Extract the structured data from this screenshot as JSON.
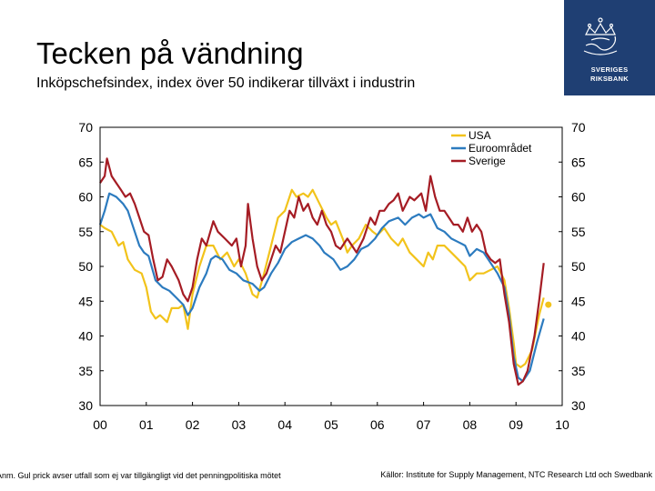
{
  "header": {
    "title": "Tecken på vändning",
    "subtitle": "Inköpschefsindex, index över 50 indikerar tillväxt i industrin"
  },
  "logo": {
    "line1": "SVERIGES",
    "line2": "RIKSBANK"
  },
  "footer": {
    "note": "Anm. Gul prick avser utfall som ej var tillgängligt vid det penningpolitiska mötet",
    "source": "Källor: Institute for Supply Management, NTC Research Ltd och Swedbank"
  },
  "colors": {
    "usa": "#f2c31b",
    "euro": "#2c7bbf",
    "sverige": "#a51c24",
    "logo_bg": "#1f3f73"
  },
  "chart_data": {
    "type": "line",
    "title": "Inköpschefsindex",
    "xlabel": "",
    "ylabel": "",
    "x_range": [
      2000,
      2010
    ],
    "ylim": [
      30,
      70
    ],
    "y_ticks": [
      70,
      65,
      60,
      55,
      50,
      45,
      40,
      35,
      30
    ],
    "y_tick_labels_left": [
      "70",
      "65",
      "60",
      "55",
      "50",
      "45",
      "40",
      "35",
      "30"
    ],
    "y_tick_labels_right": [
      "70",
      "65",
      "60",
      "55",
      "50",
      "45",
      "40",
      "35",
      "30"
    ],
    "x_ticks": [
      2000,
      2001,
      2002,
      2003,
      2004,
      2005,
      2006,
      2007,
      2008,
      2009,
      2010
    ],
    "x_tick_labels": [
      "00",
      "01",
      "02",
      "03",
      "04",
      "05",
      "06",
      "07",
      "08",
      "09",
      "10"
    ],
    "legend": [
      "USA",
      "Euroområdet",
      "Sverige"
    ],
    "legend_position": "top-right",
    "series": [
      {
        "name": "USA",
        "points": [
          [
            2000.0,
            56
          ],
          [
            2000.1,
            55.5
          ],
          [
            2000.25,
            55
          ],
          [
            2000.4,
            53
          ],
          [
            2000.5,
            53.5
          ],
          [
            2000.6,
            51
          ],
          [
            2000.75,
            49.5
          ],
          [
            2000.9,
            49
          ],
          [
            2001.0,
            47
          ],
          [
            2001.1,
            43.5
          ],
          [
            2001.2,
            42.5
          ],
          [
            2001.3,
            43
          ],
          [
            2001.45,
            42
          ],
          [
            2001.55,
            44
          ],
          [
            2001.7,
            44
          ],
          [
            2001.8,
            44.5
          ],
          [
            2001.9,
            41
          ],
          [
            2002.0,
            46
          ],
          [
            2002.15,
            50
          ],
          [
            2002.3,
            53
          ],
          [
            2002.45,
            53
          ],
          [
            2002.6,
            51
          ],
          [
            2002.75,
            52
          ],
          [
            2002.9,
            50
          ],
          [
            2003.0,
            51
          ],
          [
            2003.15,
            49
          ],
          [
            2003.3,
            46
          ],
          [
            2003.4,
            45.5
          ],
          [
            2003.55,
            49
          ],
          [
            2003.7,
            53
          ],
          [
            2003.85,
            57
          ],
          [
            2004.0,
            58
          ],
          [
            2004.15,
            61
          ],
          [
            2004.25,
            60
          ],
          [
            2004.4,
            60.5
          ],
          [
            2004.5,
            60
          ],
          [
            2004.6,
            61
          ],
          [
            2004.75,
            59
          ],
          [
            2004.9,
            57
          ],
          [
            2005.0,
            56
          ],
          [
            2005.1,
            56.5
          ],
          [
            2005.25,
            54
          ],
          [
            2005.35,
            52
          ],
          [
            2005.45,
            53
          ],
          [
            2005.6,
            54
          ],
          [
            2005.75,
            56
          ],
          [
            2005.9,
            55
          ],
          [
            2006.0,
            54.5
          ],
          [
            2006.15,
            55.5
          ],
          [
            2006.3,
            54
          ],
          [
            2006.45,
            53
          ],
          [
            2006.55,
            54
          ],
          [
            2006.7,
            52
          ],
          [
            2006.85,
            51
          ],
          [
            2007.0,
            50
          ],
          [
            2007.1,
            52
          ],
          [
            2007.2,
            51
          ],
          [
            2007.3,
            53
          ],
          [
            2007.45,
            53
          ],
          [
            2007.6,
            52
          ],
          [
            2007.75,
            51
          ],
          [
            2007.9,
            50
          ],
          [
            2008.0,
            48
          ],
          [
            2008.15,
            49
          ],
          [
            2008.3,
            49
          ],
          [
            2008.45,
            49.5
          ],
          [
            2008.6,
            50
          ],
          [
            2008.75,
            48
          ],
          [
            2008.85,
            44
          ],
          [
            2008.95,
            39
          ],
          [
            2009.0,
            36
          ],
          [
            2009.1,
            35.5
          ],
          [
            2009.2,
            36
          ],
          [
            2009.35,
            38
          ],
          [
            2009.5,
            43
          ],
          [
            2009.6,
            45.5
          ]
        ]
      },
      {
        "name": "Euroområdet",
        "points": [
          [
            2000.0,
            56
          ],
          [
            2000.1,
            58
          ],
          [
            2000.2,
            60.5
          ],
          [
            2000.35,
            60
          ],
          [
            2000.5,
            59
          ],
          [
            2000.6,
            58
          ],
          [
            2000.75,
            55
          ],
          [
            2000.85,
            53
          ],
          [
            2000.95,
            52
          ],
          [
            2001.05,
            51.5
          ],
          [
            2001.2,
            48
          ],
          [
            2001.35,
            47
          ],
          [
            2001.5,
            46.5
          ],
          [
            2001.65,
            45.5
          ],
          [
            2001.8,
            44.5
          ],
          [
            2001.9,
            43
          ],
          [
            2002.0,
            44
          ],
          [
            2002.15,
            47
          ],
          [
            2002.3,
            49
          ],
          [
            2002.4,
            51
          ],
          [
            2002.5,
            51.5
          ],
          [
            2002.65,
            51
          ],
          [
            2002.8,
            49.5
          ],
          [
            2002.95,
            49
          ],
          [
            2003.1,
            48
          ],
          [
            2003.3,
            47.5
          ],
          [
            2003.45,
            46.5
          ],
          [
            2003.55,
            47
          ],
          [
            2003.7,
            49
          ],
          [
            2003.85,
            50.5
          ],
          [
            2004.0,
            52.5
          ],
          [
            2004.15,
            53.5
          ],
          [
            2004.3,
            54
          ],
          [
            2004.45,
            54.5
          ],
          [
            2004.6,
            54
          ],
          [
            2004.75,
            53
          ],
          [
            2004.85,
            52
          ],
          [
            2004.95,
            51.5
          ],
          [
            2005.05,
            51
          ],
          [
            2005.2,
            49.5
          ],
          [
            2005.35,
            50
          ],
          [
            2005.5,
            51
          ],
          [
            2005.65,
            52.5
          ],
          [
            2005.8,
            53
          ],
          [
            2005.95,
            54
          ],
          [
            2006.1,
            55.5
          ],
          [
            2006.25,
            56.5
          ],
          [
            2006.45,
            57
          ],
          [
            2006.6,
            56
          ],
          [
            2006.75,
            57
          ],
          [
            2006.9,
            57.5
          ],
          [
            2007.0,
            57
          ],
          [
            2007.15,
            57.5
          ],
          [
            2007.3,
            55.5
          ],
          [
            2007.45,
            55
          ],
          [
            2007.6,
            54
          ],
          [
            2007.75,
            53.5
          ],
          [
            2007.9,
            53
          ],
          [
            2008.0,
            51.5
          ],
          [
            2008.15,
            52.5
          ],
          [
            2008.3,
            52
          ],
          [
            2008.45,
            50.5
          ],
          [
            2008.6,
            49
          ],
          [
            2008.75,
            47
          ],
          [
            2008.85,
            43
          ],
          [
            2008.95,
            37
          ],
          [
            2009.05,
            34
          ],
          [
            2009.15,
            33.5
          ],
          [
            2009.3,
            35
          ],
          [
            2009.45,
            39
          ],
          [
            2009.6,
            42.5
          ]
        ]
      },
      {
        "name": "Sverige",
        "points": [
          [
            2000.0,
            62
          ],
          [
            2000.1,
            63
          ],
          [
            2000.15,
            65.5
          ],
          [
            2000.25,
            63
          ],
          [
            2000.35,
            62
          ],
          [
            2000.45,
            61
          ],
          [
            2000.55,
            60
          ],
          [
            2000.65,
            60.5
          ],
          [
            2000.75,
            59
          ],
          [
            2000.85,
            57
          ],
          [
            2000.95,
            55
          ],
          [
            2001.05,
            54.5
          ],
          [
            2001.15,
            51
          ],
          [
            2001.25,
            48
          ],
          [
            2001.35,
            48.5
          ],
          [
            2001.45,
            51
          ],
          [
            2001.55,
            50
          ],
          [
            2001.7,
            48
          ],
          [
            2001.8,
            46
          ],
          [
            2001.9,
            45
          ],
          [
            2002.0,
            47
          ],
          [
            2002.1,
            51
          ],
          [
            2002.2,
            54
          ],
          [
            2002.3,
            53
          ],
          [
            2002.45,
            56.5
          ],
          [
            2002.55,
            55
          ],
          [
            2002.7,
            54
          ],
          [
            2002.85,
            53
          ],
          [
            2002.95,
            54
          ],
          [
            2003.05,
            50
          ],
          [
            2003.15,
            53
          ],
          [
            2003.2,
            59
          ],
          [
            2003.3,
            54
          ],
          [
            2003.4,
            50
          ],
          [
            2003.5,
            48
          ],
          [
            2003.6,
            49
          ],
          [
            2003.7,
            51
          ],
          [
            2003.8,
            53
          ],
          [
            2003.9,
            52
          ],
          [
            2004.0,
            55
          ],
          [
            2004.1,
            58
          ],
          [
            2004.2,
            57
          ],
          [
            2004.3,
            60
          ],
          [
            2004.4,
            58
          ],
          [
            2004.5,
            59
          ],
          [
            2004.6,
            57
          ],
          [
            2004.7,
            56
          ],
          [
            2004.8,
            58
          ],
          [
            2004.9,
            56
          ],
          [
            2005.0,
            55
          ],
          [
            2005.1,
            53
          ],
          [
            2005.2,
            52.5
          ],
          [
            2005.35,
            54
          ],
          [
            2005.45,
            53
          ],
          [
            2005.55,
            52
          ],
          [
            2005.7,
            54
          ],
          [
            2005.85,
            57
          ],
          [
            2005.95,
            56
          ],
          [
            2006.05,
            58
          ],
          [
            2006.15,
            58
          ],
          [
            2006.25,
            59
          ],
          [
            2006.35,
            59.5
          ],
          [
            2006.45,
            60.5
          ],
          [
            2006.55,
            58
          ],
          [
            2006.7,
            60
          ],
          [
            2006.8,
            59.5
          ],
          [
            2006.95,
            60.5
          ],
          [
            2007.05,
            58
          ],
          [
            2007.15,
            63
          ],
          [
            2007.25,
            60
          ],
          [
            2007.35,
            58
          ],
          [
            2007.45,
            58
          ],
          [
            2007.55,
            57
          ],
          [
            2007.65,
            56
          ],
          [
            2007.75,
            56
          ],
          [
            2007.85,
            55
          ],
          [
            2007.95,
            57
          ],
          [
            2008.05,
            55
          ],
          [
            2008.15,
            56
          ],
          [
            2008.25,
            55
          ],
          [
            2008.35,
            52
          ],
          [
            2008.45,
            51
          ],
          [
            2008.55,
            50.5
          ],
          [
            2008.65,
            51
          ],
          [
            2008.75,
            46
          ],
          [
            2008.85,
            42
          ],
          [
            2008.95,
            36
          ],
          [
            2009.05,
            33
          ],
          [
            2009.15,
            33.5
          ],
          [
            2009.25,
            35
          ],
          [
            2009.4,
            40
          ],
          [
            2009.5,
            45
          ],
          [
            2009.6,
            50.5
          ]
        ]
      }
    ],
    "marker": {
      "series": "USA",
      "x": 2009.7,
      "y": 44.5
    }
  }
}
